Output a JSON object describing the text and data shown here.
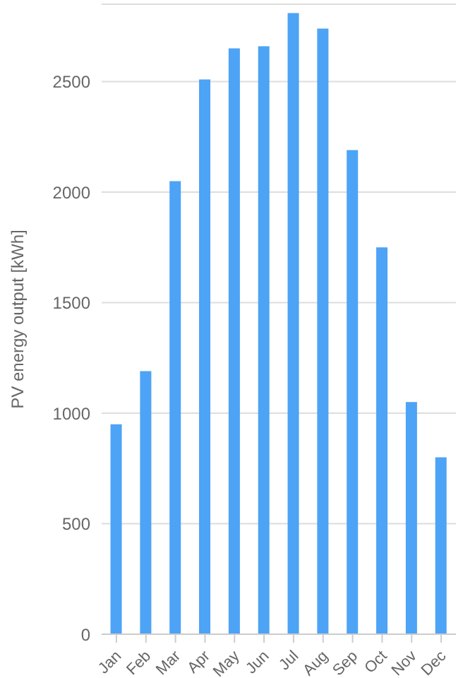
{
  "chart_data": {
    "type": "bar",
    "ylabel": "PV energy output [kWh]",
    "categories": [
      "Jan",
      "Feb",
      "Mar",
      "Apr",
      "May",
      "Jun",
      "Jul",
      "Aug",
      "Sep",
      "Oct",
      "Nov",
      "Dec"
    ],
    "values": [
      950,
      1190,
      2050,
      2510,
      2650,
      2660,
      2810,
      2740,
      2190,
      1750,
      1050,
      800
    ],
    "color": "#4da3f5",
    "ylim": [
      0,
      2850
    ],
    "yticks": [
      0,
      500,
      1000,
      1500,
      2000,
      2500
    ],
    "grid": "y"
  }
}
